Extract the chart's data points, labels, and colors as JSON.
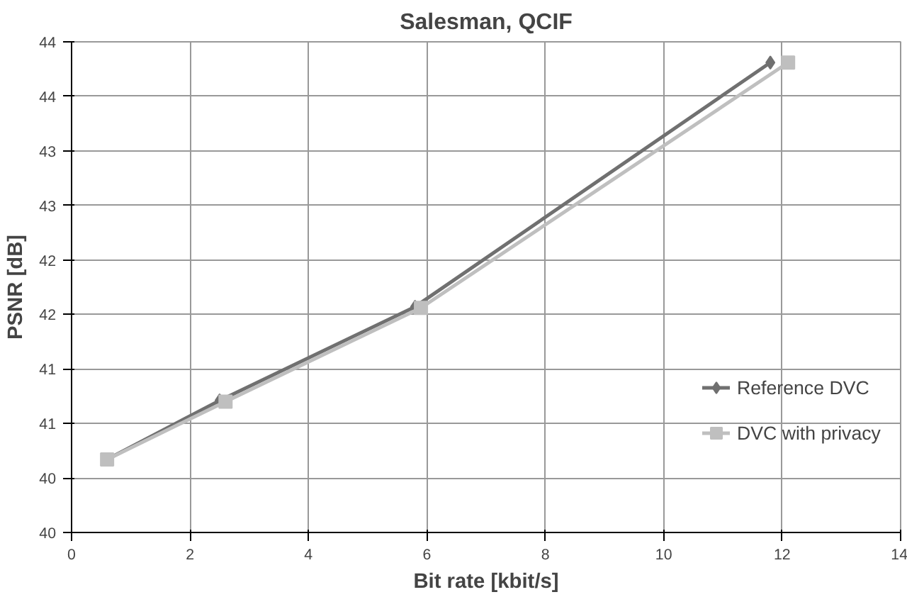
{
  "chart_data": {
    "type": "line",
    "title": "Salesman, QCIF",
    "xlabel": "Bit rate [kbit/s]",
    "ylabel": "PSNR [dB]",
    "xlim": [
      0,
      14
    ],
    "xticks": [
      0,
      2,
      4,
      6,
      8,
      10,
      12,
      14
    ],
    "ylim": [
      39.8,
      44.3
    ],
    "yticks": [
      {
        "value": 39.8,
        "label": "40"
      },
      {
        "value": 40.3,
        "label": "40"
      },
      {
        "value": 40.8,
        "label": "41"
      },
      {
        "value": 41.3,
        "label": "41"
      },
      {
        "value": 41.8,
        "label": "42"
      },
      {
        "value": 42.3,
        "label": "42"
      },
      {
        "value": 42.8,
        "label": "43"
      },
      {
        "value": 43.3,
        "label": "43"
      },
      {
        "value": 43.8,
        "label": "44"
      },
      {
        "value": 44.3,
        "label": "44"
      }
    ],
    "grid": true,
    "legend": "right",
    "series": [
      {
        "name": "Reference DVC",
        "color": "#707070",
        "marker": "diamond",
        "x": [
          0.6,
          2.5,
          5.8,
          11.8
        ],
        "values": [
          40.47,
          41.01,
          41.87,
          44.11
        ]
      },
      {
        "name": "DVC with privacy",
        "color": "#bfbfbf",
        "marker": "square",
        "x": [
          0.6,
          2.6,
          5.9,
          12.1
        ],
        "values": [
          40.47,
          41.0,
          41.86,
          44.11
        ]
      }
    ]
  }
}
